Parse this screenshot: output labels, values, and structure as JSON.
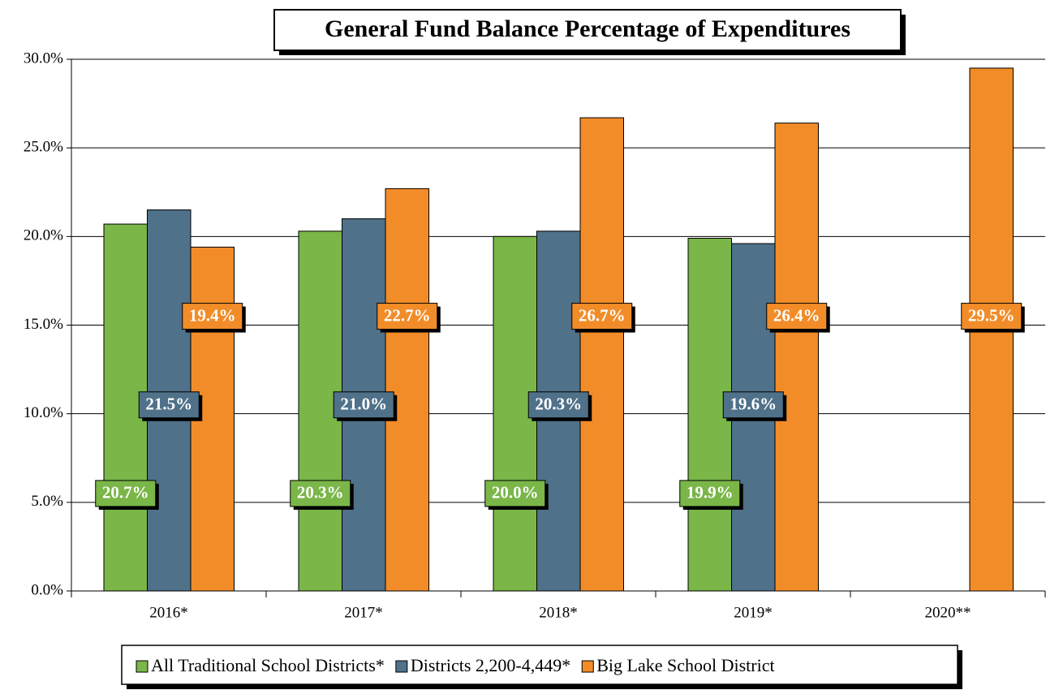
{
  "chart_data": {
    "type": "bar",
    "title": "General Fund Balance Percentage of Expenditures",
    "categories": [
      "2016*",
      "2017*",
      "2018*",
      "2019*",
      "2020**"
    ],
    "series": [
      {
        "name": "All Traditional School Districts*",
        "color": "#7ab648",
        "values": [
          20.7,
          20.3,
          20.0,
          19.9,
          null
        ],
        "value_labels": [
          "20.7%",
          "20.3%",
          "20.0%",
          "19.9%",
          null
        ]
      },
      {
        "name": "Districts 2,200-4,449*",
        "color": "#4f7189",
        "values": [
          21.5,
          21.0,
          20.3,
          19.6,
          null
        ],
        "value_labels": [
          "21.5%",
          "21.0%",
          "20.3%",
          "19.6%",
          null
        ]
      },
      {
        "name": "Big Lake School District",
        "color": "#f28c28",
        "values": [
          19.4,
          22.7,
          26.7,
          26.4,
          29.5
        ],
        "value_labels": [
          "19.4%",
          "22.7%",
          "26.7%",
          "26.4%",
          "29.5%"
        ]
      }
    ],
    "ylim": [
      0,
      30
    ],
    "yticks": [
      {
        "value": 0,
        "label": "0.0%"
      },
      {
        "value": 5,
        "label": "5.0%"
      },
      {
        "value": 10,
        "label": "10.0%"
      },
      {
        "value": 15,
        "label": "15.0%"
      },
      {
        "value": 20,
        "label": "20.0%"
      },
      {
        "value": 25,
        "label": "25.0%"
      },
      {
        "value": 30,
        "label": "30.0%"
      }
    ],
    "grid": true,
    "legend": "bottom"
  }
}
